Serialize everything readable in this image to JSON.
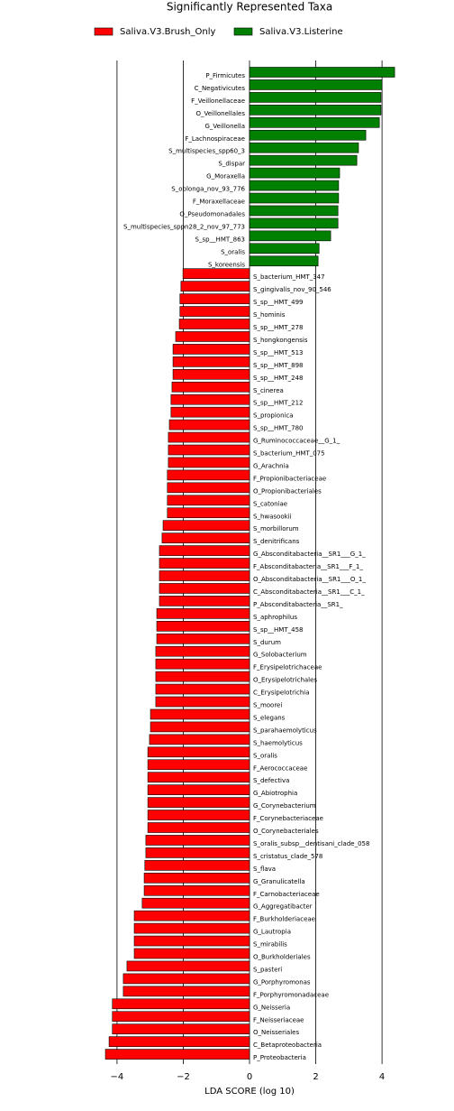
{
  "chart_data": {
    "type": "hbar",
    "title": "Significantly Represented Taxa",
    "x_label": "LDA SCORE (log 10)",
    "categories": [
      "P_Firmicutes",
      "C_Negativicutes",
      "F_Veillonellaceae",
      "O_Veillonellales",
      "G_Veillonella",
      "F_Lachnospiraceae",
      "S_multispecies_spp60_3",
      "S_dispar",
      "G_Moraxella",
      "S_oblonga_nov_93_776",
      "F_Moraxellaceae",
      "O_Pseudomonadales",
      "S_multispecies_sppn28_2_nov_97_773",
      "S_sp__HMT_863",
      "S_oralis",
      "S_koreensis",
      "S_bacterium_HMT_347",
      "S_gingivalis_nov_90_546",
      "S_sp__HMT_499",
      "S_hominis",
      "S_sp__HMT_278",
      "S_hongkongensis",
      "S_sp__HMT_513",
      "S_sp__HMT_898",
      "S_sp__HMT_248",
      "S_cinerea",
      "S_sp__HMT_212",
      "S_propionica",
      "S_sp__HMT_780",
      "G_Ruminococcaceae__G_1_",
      "S_bacterium_HMT_075",
      "G_Arachnia",
      "F_Propionibacteriaceae",
      "O_Propionibacteriales",
      "S_catoniae",
      "S_hwasookii",
      "S_morbillorum",
      "S_denitrificans",
      "G_Absconditabacteria__SR1___G_1_",
      "F_Absconditabacteria__SR1___F_1_",
      "O_Absconditabacteria__SR1___O_1_",
      "C_Absconditabacteria__SR1___C_1_",
      "P_Absconditabacteria__SR1_",
      "S_aphrophilus",
      "S_sp__HMT_458",
      "S_durum",
      "G_Solobacterium",
      "F_Erysipelotrichaceae",
      "O_Erysipelotrichales",
      "C_Erysipelotrichia",
      "S_moorei",
      "S_elegans",
      "S_parahaemolyticus",
      "S_haemolyticus",
      "S_oralis",
      "F_Aerococcaceae",
      "S_defectiva",
      "G_Abiotrophia",
      "G_Corynebacterium",
      "F_Corynebacteriaceae",
      "O_Corynebacteriales",
      "S_oralis_subsp__dentisani_clade_058",
      "S_cristatus_clade_578",
      "S_flava",
      "G_Granulicatella",
      "F_Carnobacteriaceae",
      "G_Aggregatibacter",
      "F_Burkholderiaceae",
      "G_Lautropia",
      "S_mirabilis",
      "O_Burkholderiales",
      "S_pasteri",
      "G_Porphyromonas",
      "F_Porphyromonadaceae",
      "G_Neisseria",
      "F_Neisseriaceae",
      "O_Neisseriales",
      "C_Betaproteobacteria",
      "P_Proteobacteria"
    ],
    "series": [
      {
        "name": "Saliva.V3.Brush_Only",
        "color": "#ff0000",
        "values": [
          null,
          null,
          null,
          null,
          null,
          null,
          null,
          null,
          null,
          null,
          null,
          null,
          null,
          null,
          null,
          null,
          -2.01,
          -2.07,
          -2.1,
          -2.1,
          -2.12,
          -2.23,
          -2.31,
          -2.31,
          -2.31,
          -2.34,
          -2.37,
          -2.37,
          -2.42,
          -2.45,
          -2.45,
          -2.45,
          -2.48,
          -2.48,
          -2.48,
          -2.48,
          -2.61,
          -2.64,
          -2.72,
          -2.72,
          -2.72,
          -2.72,
          -2.72,
          -2.8,
          -2.8,
          -2.8,
          -2.83,
          -2.83,
          -2.83,
          -2.83,
          -2.83,
          -2.99,
          -2.99,
          -3.02,
          -3.07,
          -3.07,
          -3.07,
          -3.07,
          -3.07,
          -3.07,
          -3.07,
          -3.13,
          -3.13,
          -3.16,
          -3.18,
          -3.18,
          -3.24,
          -3.48,
          -3.48,
          -3.48,
          -3.48,
          -3.7,
          -3.81,
          -3.81,
          -4.14,
          -4.14,
          -4.14,
          -4.24,
          -4.35
        ]
      },
      {
        "name": "Saliva.V3.Listerine",
        "color": "#008000",
        "values": [
          4.38,
          4.0,
          3.97,
          3.97,
          3.92,
          3.51,
          3.29,
          3.24,
          2.72,
          2.69,
          2.69,
          2.67,
          2.67,
          2.45,
          2.1,
          2.07,
          null,
          null,
          null,
          null,
          null,
          null,
          null,
          null,
          null,
          null,
          null,
          null,
          null,
          null,
          null,
          null,
          null,
          null,
          null,
          null,
          null,
          null,
          null,
          null,
          null,
          null,
          null,
          null,
          null,
          null,
          null,
          null,
          null,
          null,
          null,
          null,
          null,
          null,
          null,
          null,
          null,
          null,
          null,
          null,
          null,
          null,
          null,
          null,
          null,
          null,
          null,
          null,
          null,
          null,
          null,
          null,
          null,
          null,
          null,
          null,
          null,
          null,
          null
        ]
      }
    ],
    "xlim": [
      -4.65,
      4.65
    ],
    "xticks": [
      {
        "value": -4,
        "label": "−4"
      },
      {
        "value": -2,
        "label": "−2"
      },
      0,
      2,
      4
    ],
    "grid": true
  }
}
